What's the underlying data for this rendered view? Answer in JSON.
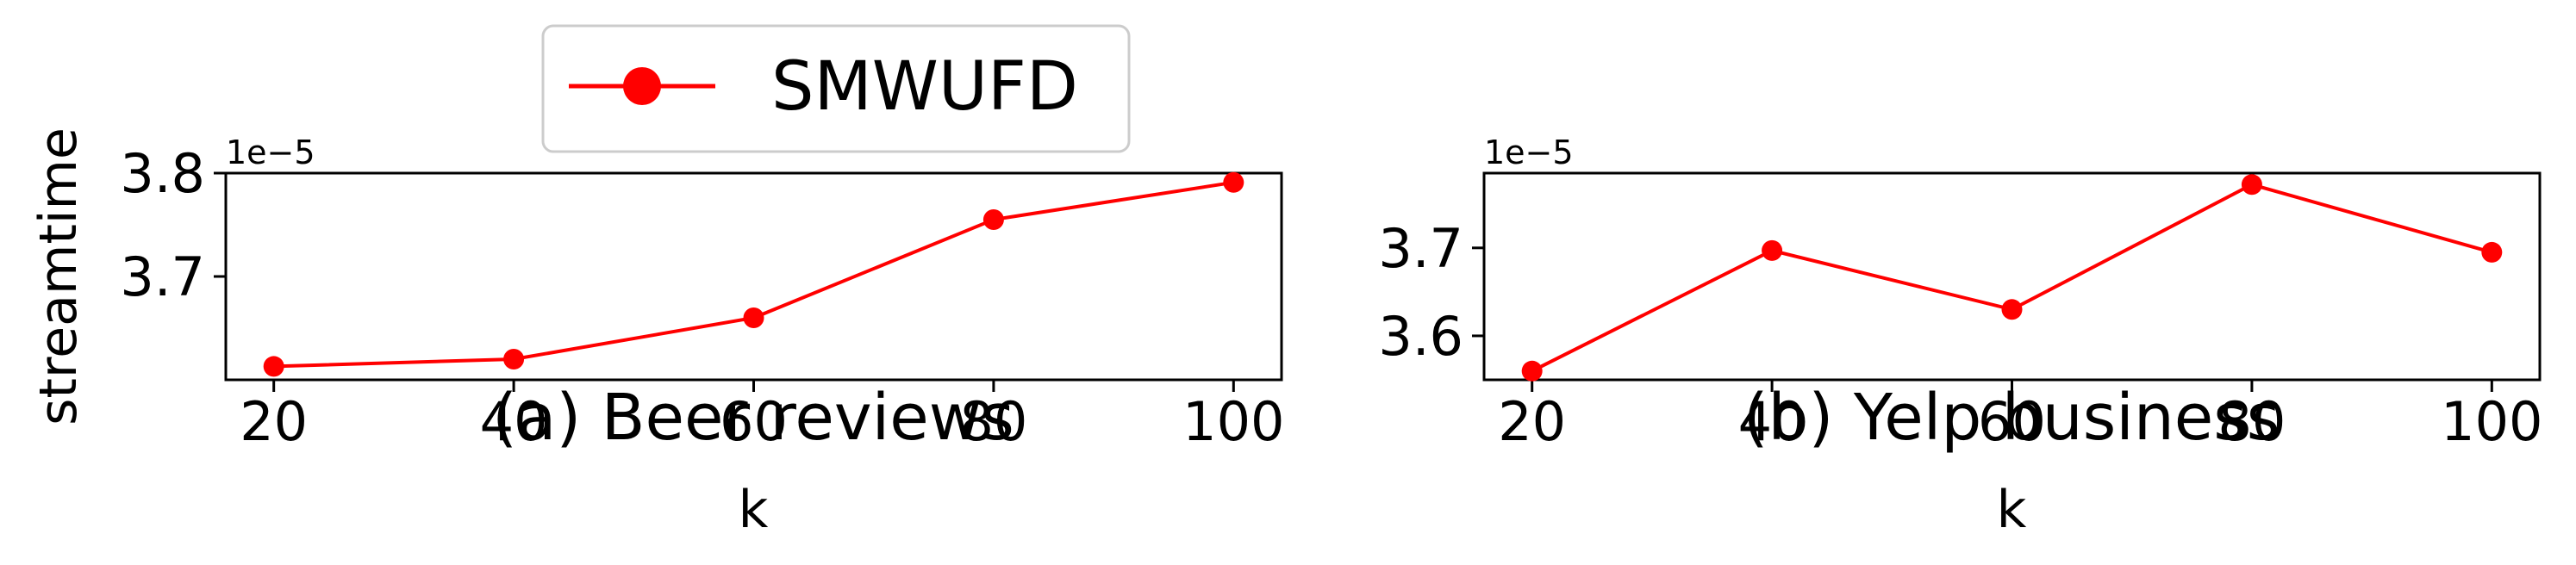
{
  "legend": {
    "label": "SMWUFD",
    "location": "upper center (outside, above panel a)"
  },
  "colors": {
    "series": "#ff0000"
  },
  "chart_data": [
    {
      "type": "line",
      "caption": "(a) Beer reviews",
      "xlabel": "k",
      "ylabel": "streamtime",
      "offset_text": "1e−5",
      "x": [
        20,
        40,
        60,
        80,
        100
      ],
      "xticks": [
        "20",
        "40",
        "60",
        "80",
        "100"
      ],
      "yticks": [
        "3.7",
        "3.8"
      ],
      "xlim": [
        16,
        104
      ],
      "ylim": [
        3.6,
        3.8
      ],
      "grid": false,
      "series": [
        {
          "name": "SMWUFD",
          "values": [
            3.613,
            3.62,
            3.66,
            3.755,
            3.791
          ]
        }
      ]
    },
    {
      "type": "line",
      "caption": "(b) Yelp business",
      "xlabel": "k",
      "ylabel": "",
      "offset_text": "1e−5",
      "x": [
        20,
        40,
        60,
        80,
        100
      ],
      "xticks": [
        "20",
        "40",
        "60",
        "80",
        "100"
      ],
      "yticks": [
        "3.6",
        "3.7"
      ],
      "xlim": [
        16,
        104
      ],
      "ylim": [
        3.55,
        3.785
      ],
      "grid": false,
      "series": [
        {
          "name": "SMWUFD",
          "values": [
            3.56,
            3.697,
            3.63,
            3.772,
            3.695
          ]
        }
      ]
    }
  ]
}
